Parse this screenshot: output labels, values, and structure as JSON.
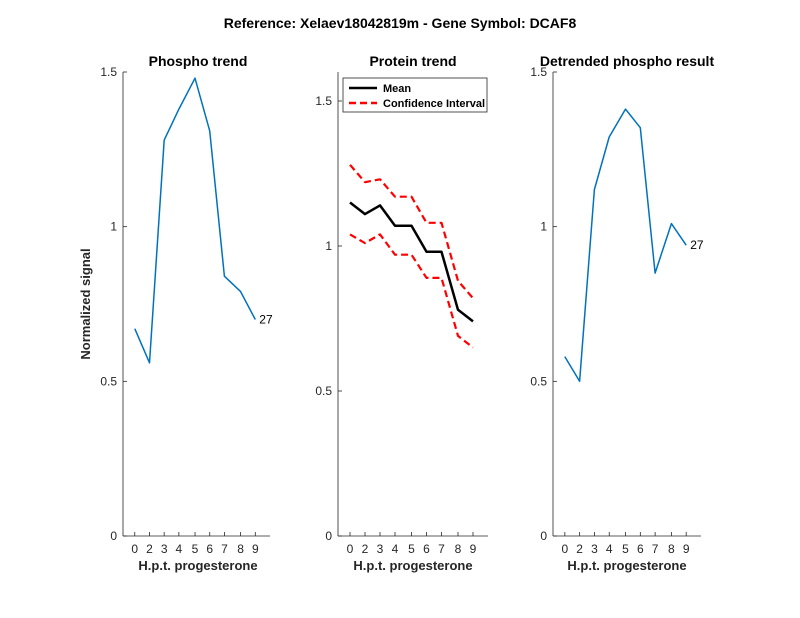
{
  "figure": {
    "suptitle": "Reference:  Xelaev18042819m - Gene Symbol:  DCAF8",
    "ylabel": "Normalized signal"
  },
  "colors": {
    "phospho": "#0072BD",
    "mean": "#000000",
    "ci": "#FF0000",
    "axis": "#262626"
  },
  "chart_data": [
    {
      "type": "line",
      "title": "Phospho trend",
      "xlabel": "H.p.t. progesterone",
      "ylabel": "Normalized signal",
      "categories": [
        "0",
        "2",
        "3",
        "4",
        "5",
        "6",
        "7",
        "8",
        "9"
      ],
      "xlim": [
        0,
        9
      ],
      "ylim": [
        0,
        1.5
      ],
      "yticks": [
        0,
        0.5,
        1,
        1.5
      ],
      "ytick_labels": [
        "0",
        "0.5",
        "1",
        "1.5"
      ],
      "series": [
        {
          "values": [
            0.67,
            0.56,
            1.28,
            1.38,
            1.48,
            1.31,
            0.84,
            0.79,
            0.7
          ],
          "end_label": "27"
        }
      ]
    },
    {
      "type": "line",
      "title": "Protein trend",
      "xlabel": "H.p.t. progesterone",
      "categories": [
        "0",
        "2",
        "3",
        "4",
        "5",
        "6",
        "7",
        "8",
        "9"
      ],
      "xlim": [
        0,
        9
      ],
      "ylim": [
        0,
        1.6
      ],
      "yticks": [
        0,
        0.5,
        1,
        1.5
      ],
      "ytick_labels": [
        "0",
        "0.5",
        "1",
        "1.5"
      ],
      "legend": {
        "placement": "top-left",
        "entries": [
          "Mean",
          "Confidence Interval"
        ]
      },
      "series": [
        {
          "name": "Mean",
          "values": [
            1.15,
            1.11,
            1.14,
            1.07,
            1.07,
            0.98,
            0.98,
            0.78,
            0.74
          ]
        },
        {
          "name": "Confidence Interval",
          "values": [
            1.28,
            1.22,
            1.23,
            1.17,
            1.17,
            1.08,
            1.08,
            0.88,
            0.82
          ]
        },
        {
          "name": "Confidence Interval",
          "values": [
            1.04,
            1.01,
            1.04,
            0.97,
            0.97,
            0.89,
            0.89,
            0.69,
            0.65
          ]
        }
      ]
    },
    {
      "type": "line",
      "title": "Detrended phospho result",
      "xlabel": "H.p.t. progesterone",
      "categories": [
        "0",
        "2",
        "3",
        "4",
        "5",
        "6",
        "7",
        "8",
        "9"
      ],
      "xlim": [
        0,
        9
      ],
      "ylim": [
        0,
        1.5
      ],
      "yticks": [
        0,
        0.5,
        1,
        1.5
      ],
      "ytick_labels": [
        "0",
        "0.5",
        "1",
        "1.5"
      ],
      "series": [
        {
          "values": [
            0.58,
            0.5,
            1.12,
            1.29,
            1.38,
            1.32,
            0.85,
            1.01,
            0.94
          ],
          "end_label": "27"
        }
      ]
    }
  ]
}
